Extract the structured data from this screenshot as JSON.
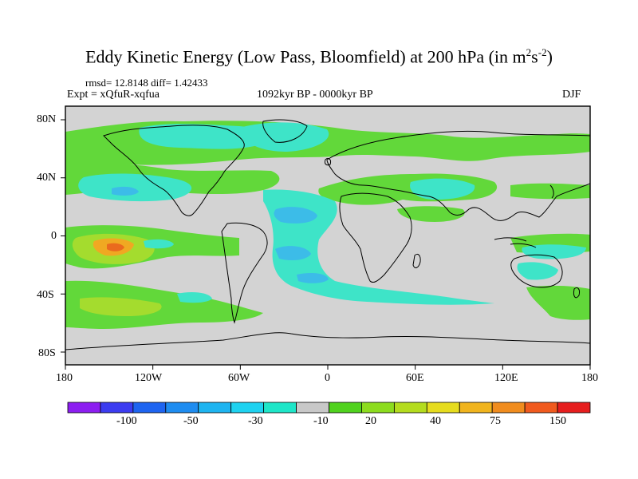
{
  "title": {
    "main": "Eddy Kinetic Energy (Low Pass, Bloomfield) at 200 hPa (in m",
    "sup1": "2",
    "mid": "s",
    "sup2": "-2",
    "close": ")"
  },
  "stats": "rmsd= 12.8148 diff= 1.42433",
  "experiment": "Expt = xQfuR-xqfua",
  "period": "1092kyr BP - 0000kyr BP",
  "season": "DJF",
  "axes": {
    "lat_labels": [
      "80N",
      "40N",
      "0",
      "40S",
      "80S"
    ],
    "lon_labels": [
      "180",
      "120W",
      "60W",
      "0",
      "60E",
      "120E",
      "180"
    ]
  },
  "colorbar": {
    "labels": [
      "-100",
      "-50",
      "-30",
      "-10",
      "20",
      "40",
      "75",
      "150"
    ],
    "colors": [
      "#8c1ef0",
      "#3c3cf0",
      "#1e64f0",
      "#1e8cf0",
      "#1eb4f0",
      "#1ed2f0",
      "#1ee6c8",
      "#c8c8c8",
      "#50d21e",
      "#8cdc1e",
      "#b4dc1e",
      "#e6dc1e",
      "#f0b41e",
      "#f08c1e",
      "#f05a1e",
      "#e61e1e"
    ]
  },
  "map_colors": {
    "ocean": "#d3d3d3",
    "cyan": "#3ee4c8",
    "blue": "#3cbce8",
    "green": "#62d83a",
    "lime": "#a4dc2e",
    "orange": "#f0a822",
    "red": "#ea6a1e"
  }
}
